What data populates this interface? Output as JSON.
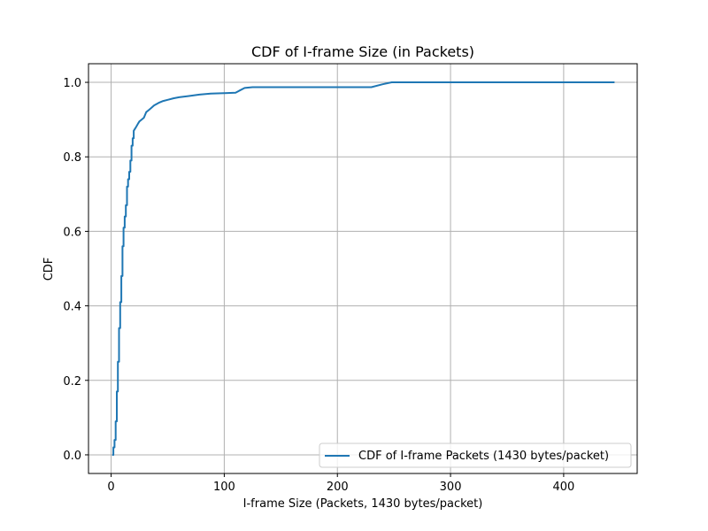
{
  "chart_data": {
    "type": "line",
    "title": "CDF of I-frame Size (in Packets)",
    "xlabel": "I-frame Size (Packets, 1430 bytes/packet)",
    "ylabel": "CDF",
    "xlim": [
      -20,
      465
    ],
    "ylim": [
      -0.05,
      1.05
    ],
    "xticks": [
      0,
      100,
      200,
      300,
      400
    ],
    "yticks": [
      0.0,
      0.2,
      0.4,
      0.6,
      0.8,
      1.0
    ],
    "xtick_labels": [
      "0",
      "100",
      "200",
      "300",
      "400"
    ],
    "ytick_labels": [
      "0.0",
      "0.2",
      "0.4",
      "0.6",
      "0.8",
      "1.0"
    ],
    "grid": true,
    "legend_position": "lower-right",
    "series": [
      {
        "name": "CDF of I-frame Packets (1430 bytes/packet)",
        "color": "#1f77b4",
        "x": [
          1,
          2,
          2,
          3,
          3,
          4,
          4,
          5,
          5,
          6,
          6,
          7,
          7,
          8,
          8,
          9,
          9,
          10,
          10,
          11,
          11,
          12,
          12,
          13,
          13,
          14,
          14,
          15,
          15,
          16,
          16,
          17,
          17,
          18,
          18,
          19,
          19,
          20,
          20,
          21,
          22,
          23,
          24,
          25,
          27,
          29,
          31,
          33,
          35,
          38,
          42,
          46,
          50,
          55,
          60,
          68,
          78,
          88,
          100,
          110,
          113,
          118,
          125,
          140,
          160,
          200,
          230,
          240,
          248,
          260,
          300,
          350,
          400,
          445
        ],
        "y": [
          0.0,
          0.0,
          0.02,
          0.02,
          0.04,
          0.04,
          0.09,
          0.09,
          0.17,
          0.17,
          0.25,
          0.25,
          0.34,
          0.34,
          0.41,
          0.41,
          0.48,
          0.48,
          0.56,
          0.56,
          0.61,
          0.61,
          0.64,
          0.64,
          0.67,
          0.67,
          0.72,
          0.72,
          0.74,
          0.74,
          0.76,
          0.76,
          0.79,
          0.79,
          0.83,
          0.83,
          0.85,
          0.85,
          0.87,
          0.875,
          0.88,
          0.885,
          0.89,
          0.895,
          0.9,
          0.905,
          0.92,
          0.925,
          0.93,
          0.938,
          0.945,
          0.95,
          0.953,
          0.957,
          0.96,
          0.963,
          0.967,
          0.97,
          0.971,
          0.972,
          0.977,
          0.985,
          0.987,
          0.987,
          0.987,
          0.987,
          0.987,
          0.995,
          1.0,
          1.0,
          1.0,
          1.0,
          1.0,
          1.0
        ]
      }
    ]
  }
}
